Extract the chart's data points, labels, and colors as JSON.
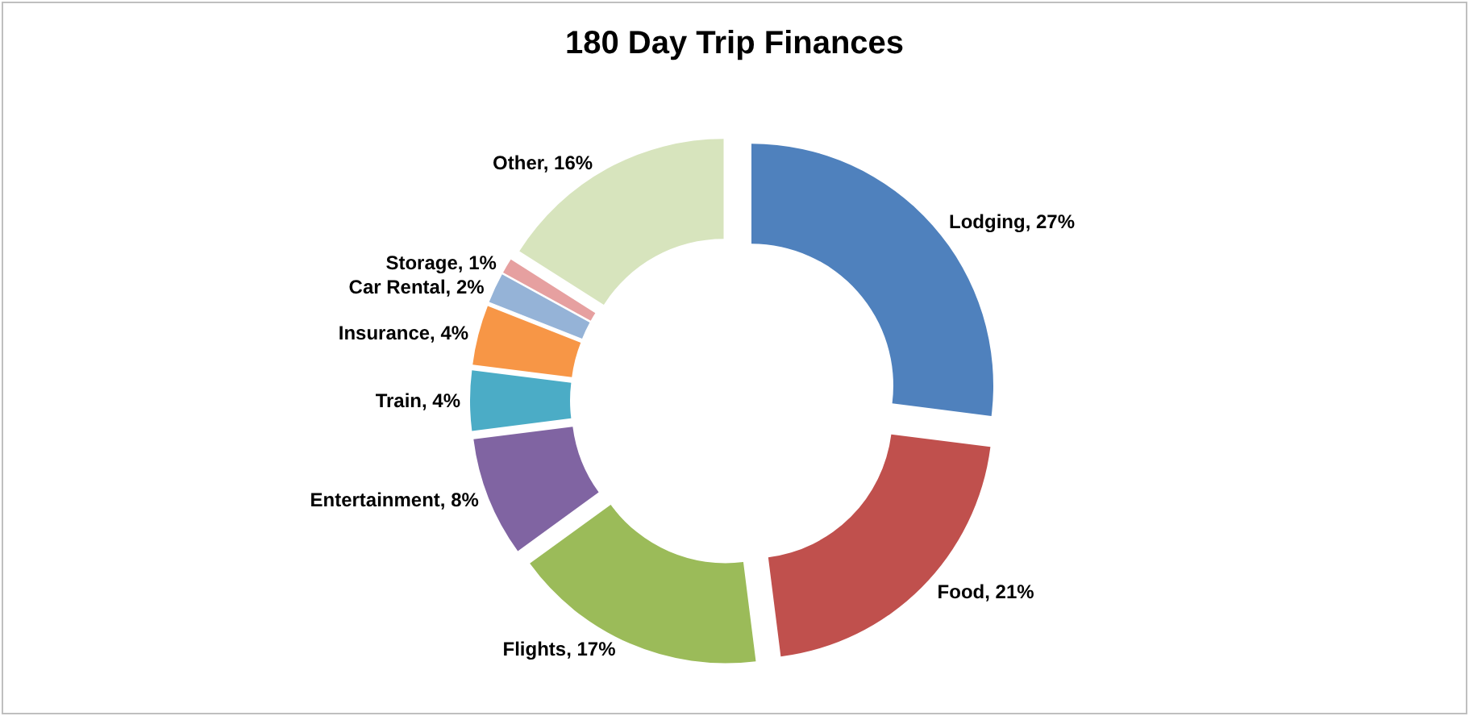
{
  "chart_data": {
    "type": "donut",
    "title": "180 Day Trip Finances",
    "categories": [
      "Lodging",
      "Food",
      "Flights",
      "Entertainment",
      "Train",
      "Insurance",
      "Car Rental",
      "Storage",
      "Other"
    ],
    "values": [
      27,
      21,
      17,
      8,
      4,
      4,
      2,
      1,
      16
    ],
    "value_labels": [
      "27%",
      "21%",
      "17%",
      "8%",
      "4%",
      "4%",
      "2%",
      "1%",
      "16%"
    ],
    "colors": [
      "#4f81bd",
      "#c0504d",
      "#9bbb59",
      "#8064a2",
      "#4bacc6",
      "#f79646",
      "#95b3d7",
      "#e6a0a0",
      "#d7e4bd"
    ],
    "legend": false
  }
}
